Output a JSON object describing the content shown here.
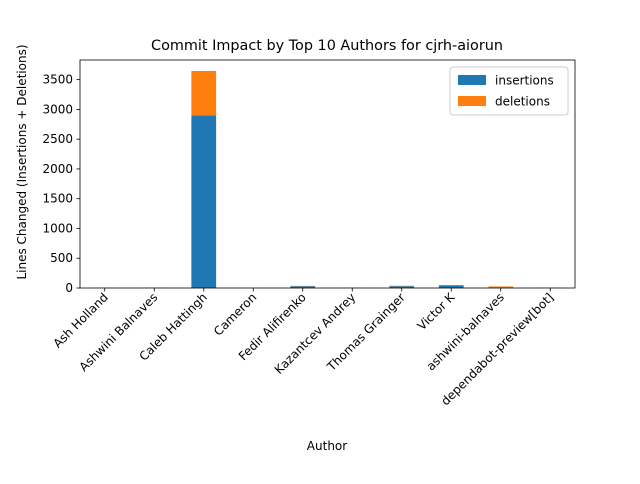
{
  "chart_data": {
    "type": "bar",
    "stacked": true,
    "title": "Commit Impact by Top 10 Authors for cjrh-aiorun",
    "xlabel": "Author",
    "ylabel": "Lines Changed (Insertions + Deletions)",
    "categories": [
      "Ash Holland",
      "Ashwini Balnaves",
      "Caleb Hattingh",
      "Cameron",
      "Fedir Alifirenko",
      "Kazantcev Andrey",
      "Thomas Grainger",
      "Victor K",
      "ashwini-balnaves",
      "dependabot-preview[bot]"
    ],
    "series": [
      {
        "name": "insertions",
        "color": "#1f77b4",
        "values": [
          2,
          4,
          2900,
          1,
          30,
          2,
          30,
          45,
          12,
          3
        ]
      },
      {
        "name": "deletions",
        "color": "#ff7f0e",
        "values": [
          1,
          2,
          745,
          1,
          6,
          1,
          8,
          5,
          14,
          2
        ]
      }
    ],
    "ylim": [
      0,
      3830
    ],
    "yticks": [
      0,
      500,
      1000,
      1500,
      2000,
      2500,
      3000,
      3500
    ],
    "legend_position": "top-right",
    "grid": false
  }
}
